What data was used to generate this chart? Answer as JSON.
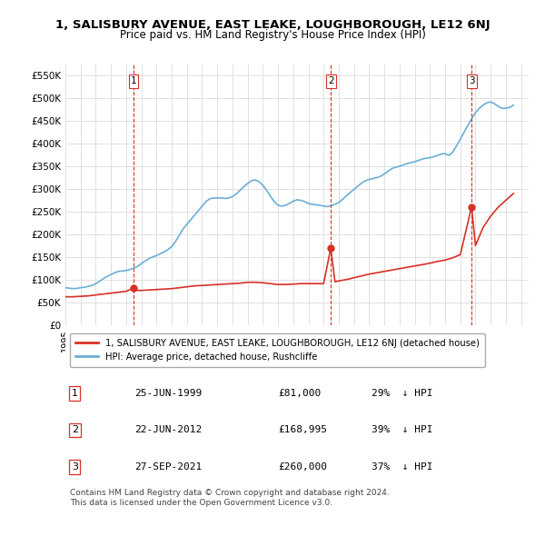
{
  "title": "1, SALISBURY AVENUE, EAST LEAKE, LOUGHBOROUGH, LE12 6NJ",
  "subtitle": "Price paid vs. HM Land Registry's House Price Index (HPI)",
  "ylabel_prefix": "£",
  "yticks": [
    0,
    50000,
    100000,
    150000,
    200000,
    250000,
    300000,
    350000,
    400000,
    450000,
    500000,
    550000
  ],
  "ytick_labels": [
    "£0",
    "£50K",
    "£100K",
    "£150K",
    "£200K",
    "£250K",
    "£300K",
    "£350K",
    "£400K",
    "£450K",
    "£500K",
    "£550K"
  ],
  "xlim_start": 1995.0,
  "xlim_end": 2025.5,
  "ylim_min": 0,
  "ylim_max": 575000,
  "hpi_color": "#6baed6",
  "price_color": "#d73027",
  "transaction_color": "#d73027",
  "vline_color": "#d73027",
  "transactions": [
    {
      "num": 1,
      "date_str": "25-JUN-1999",
      "year": 1999.48,
      "price": 81000,
      "pct": "29%",
      "dir": "↓"
    },
    {
      "num": 2,
      "date_str": "22-JUN-2012",
      "year": 2012.47,
      "price": 168995,
      "pct": "39%",
      "dir": "↓"
    },
    {
      "num": 3,
      "date_str": "27-SEP-2021",
      "year": 2021.74,
      "price": 260000,
      "pct": "37%",
      "dir": "↓"
    }
  ],
  "legend_property_label": "1, SALISBURY AVENUE, EAST LEAKE, LOUGHBOROUGH, LE12 6NJ (detached house)",
  "legend_hpi_label": "HPI: Average price, detached house, Rushcliffe",
  "footer_line1": "Contains HM Land Registry data © Crown copyright and database right 2024.",
  "footer_line2": "This data is licensed under the Open Government Licence v3.0.",
  "background_color": "#ffffff",
  "grid_color": "#e0e0e0",
  "hpi_data": {
    "years": [
      1995.0,
      1995.25,
      1995.5,
      1995.75,
      1996.0,
      1996.25,
      1996.5,
      1996.75,
      1997.0,
      1997.25,
      1997.5,
      1997.75,
      1998.0,
      1998.25,
      1998.5,
      1998.75,
      1999.0,
      1999.25,
      1999.5,
      1999.75,
      2000.0,
      2000.25,
      2000.5,
      2000.75,
      2001.0,
      2001.25,
      2001.5,
      2001.75,
      2002.0,
      2002.25,
      2002.5,
      2002.75,
      2003.0,
      2003.25,
      2003.5,
      2003.75,
      2004.0,
      2004.25,
      2004.5,
      2004.75,
      2005.0,
      2005.25,
      2005.5,
      2005.75,
      2006.0,
      2006.25,
      2006.5,
      2006.75,
      2007.0,
      2007.25,
      2007.5,
      2007.75,
      2008.0,
      2008.25,
      2008.5,
      2008.75,
      2009.0,
      2009.25,
      2009.5,
      2009.75,
      2010.0,
      2010.25,
      2010.5,
      2010.75,
      2011.0,
      2011.25,
      2011.5,
      2011.75,
      2012.0,
      2012.25,
      2012.5,
      2012.75,
      2013.0,
      2013.25,
      2013.5,
      2013.75,
      2014.0,
      2014.25,
      2014.5,
      2014.75,
      2015.0,
      2015.25,
      2015.5,
      2015.75,
      2016.0,
      2016.25,
      2016.5,
      2016.75,
      2017.0,
      2017.25,
      2017.5,
      2017.75,
      2018.0,
      2018.25,
      2018.5,
      2018.75,
      2019.0,
      2019.25,
      2019.5,
      2019.75,
      2020.0,
      2020.25,
      2020.5,
      2020.75,
      2021.0,
      2021.25,
      2021.5,
      2021.75,
      2022.0,
      2022.25,
      2022.5,
      2022.75,
      2023.0,
      2023.25,
      2023.5,
      2023.75,
      2024.0,
      2024.25,
      2024.5
    ],
    "values": [
      82000,
      81000,
      80000,
      80500,
      82000,
      83000,
      85000,
      87000,
      91000,
      96000,
      102000,
      107000,
      111000,
      115000,
      118000,
      119000,
      120000,
      122000,
      125000,
      129000,
      135000,
      141000,
      146000,
      150000,
      153000,
      157000,
      161000,
      166000,
      173000,
      184000,
      198000,
      212000,
      222000,
      232000,
      242000,
      252000,
      262000,
      272000,
      278000,
      280000,
      280000,
      280000,
      279000,
      280000,
      283000,
      289000,
      297000,
      305000,
      312000,
      318000,
      320000,
      316000,
      308000,
      297000,
      284000,
      272000,
      264000,
      262000,
      264000,
      268000,
      273000,
      276000,
      275000,
      272000,
      268000,
      266000,
      265000,
      264000,
      262000,
      261000,
      263000,
      266000,
      270000,
      277000,
      285000,
      292000,
      299000,
      306000,
      313000,
      318000,
      321000,
      323000,
      325000,
      328000,
      333000,
      339000,
      345000,
      348000,
      350000,
      353000,
      356000,
      358000,
      360000,
      363000,
      366000,
      368000,
      369000,
      371000,
      374000,
      377000,
      378000,
      374000,
      381000,
      395000,
      410000,
      425000,
      440000,
      455000,
      468000,
      478000,
      485000,
      490000,
      492000,
      488000,
      482000,
      478000,
      478000,
      480000,
      485000
    ]
  },
  "price_data": {
    "years": [
      1995.0,
      1995.5,
      1996.0,
      1996.5,
      1997.0,
      1997.5,
      1998.0,
      1998.5,
      1999.0,
      1999.48,
      1999.75,
      2000.0,
      2000.5,
      2001.0,
      2001.5,
      2002.0,
      2002.5,
      2003.0,
      2003.5,
      2004.0,
      2004.5,
      2005.0,
      2005.5,
      2006.0,
      2006.5,
      2007.0,
      2007.5,
      2008.0,
      2008.5,
      2009.0,
      2009.5,
      2010.0,
      2010.5,
      2011.0,
      2011.5,
      2012.0,
      2012.47,
      2012.75,
      2013.0,
      2013.5,
      2014.0,
      2014.5,
      2015.0,
      2015.5,
      2016.0,
      2016.5,
      2017.0,
      2017.5,
      2018.0,
      2018.5,
      2019.0,
      2019.5,
      2020.0,
      2020.5,
      2021.0,
      2021.74,
      2022.0,
      2022.5,
      2023.0,
      2023.5,
      2024.0,
      2024.5
    ],
    "values": [
      62000,
      62000,
      63000,
      64000,
      66000,
      68000,
      70000,
      72000,
      74000,
      81000,
      76000,
      76000,
      77000,
      78000,
      79000,
      80000,
      82000,
      84000,
      86000,
      87000,
      88000,
      89000,
      90000,
      91000,
      92000,
      94000,
      94000,
      93000,
      91000,
      89000,
      89000,
      90000,
      91000,
      91000,
      91000,
      91000,
      168995,
      95000,
      97000,
      100000,
      104000,
      108000,
      112000,
      115000,
      118000,
      121000,
      124000,
      127000,
      130000,
      133000,
      136000,
      140000,
      143000,
      148000,
      155000,
      260000,
      175000,
      215000,
      240000,
      260000,
      275000,
      290000
    ]
  }
}
